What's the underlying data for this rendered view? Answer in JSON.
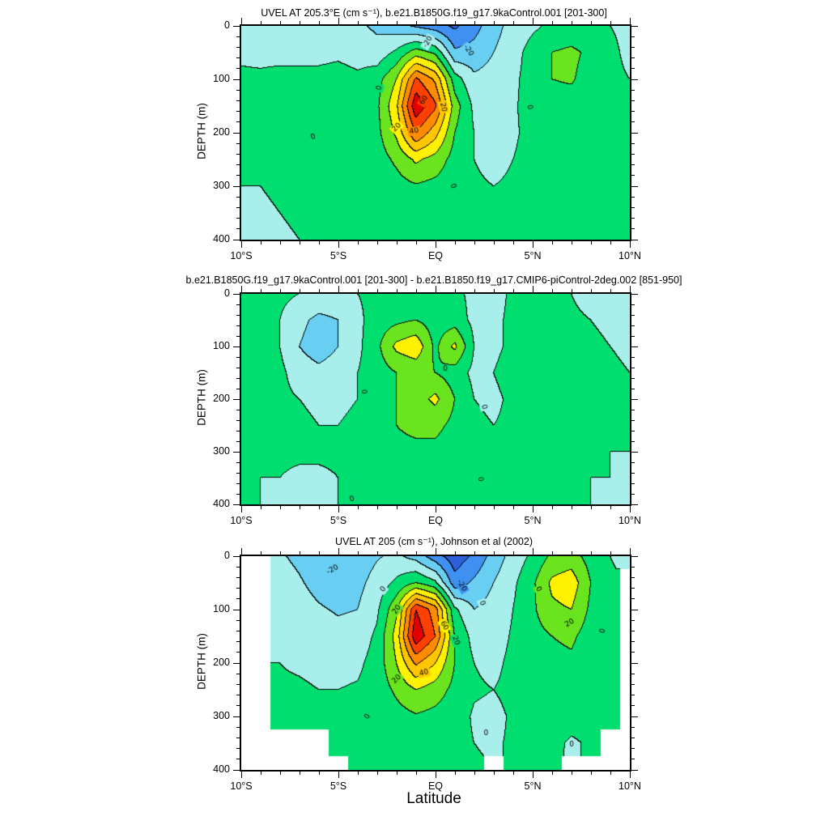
{
  "figure": {
    "xlabel": "Latitude",
    "background": "#ffffff",
    "contour_line_color": "#000000"
  },
  "palette": {
    "fill_colors": [
      "#2e5ed8",
      "#3f90f0",
      "#68cef2",
      "#a8efec",
      "#00de70",
      "#6ae41e",
      "#fff200",
      "#ffc600",
      "#ff8c00",
      "#ff4000",
      "#e40000"
    ],
    "mask_color": "#ffffff"
  },
  "chart_data": [
    {
      "type": "contour",
      "title": "UVEL AT 205.3°E (cm s⁻¹), b.e21.B1850G.f19_g17.9kaControl.001 [201-300]",
      "ylabel": "DEPTH (m)",
      "xlim": [
        -10,
        10
      ],
      "ylim": [
        0,
        400
      ],
      "x_ticks": [
        {
          "v": -10,
          "label": "10°S"
        },
        {
          "v": -5,
          "label": "5°S"
        },
        {
          "v": 0,
          "label": "EQ"
        },
        {
          "v": 5,
          "label": "5°N"
        },
        {
          "v": 10,
          "label": "10°N"
        }
      ],
      "x_minor_step": 1,
      "y_ticks": [
        0,
        100,
        200,
        300,
        400
      ],
      "y_minor_step": 20,
      "contour_interval": 10,
      "levels": [
        -30,
        -20,
        -10,
        0,
        10,
        20,
        30,
        40,
        50,
        60
      ],
      "grid": {
        "lats": [
          -10,
          -9,
          -8,
          -7,
          -6,
          -5,
          -4,
          -3,
          -2,
          -1,
          0,
          1,
          2,
          3,
          4,
          5,
          6,
          7,
          8,
          9,
          10
        ],
        "depths": [
          0,
          50,
          100,
          150,
          200,
          250,
          300,
          350,
          400
        ],
        "values": [
          [
            -3,
            -4,
            -5,
            -5,
            -6,
            -6,
            -8,
            -12,
            -16,
            -22,
            -26,
            -32,
            -24,
            -14,
            -6,
            -2,
            2,
            3,
            2,
            0,
            -2
          ],
          [
            -2,
            -3,
            -3,
            -3,
            -3,
            -2,
            -4,
            -6,
            2,
            15,
            8,
            -18,
            -16,
            -10,
            -4,
            4,
            10,
            12,
            8,
            2,
            -2
          ],
          [
            2,
            2,
            3,
            3,
            3,
            4,
            2,
            6,
            20,
            52,
            38,
            5,
            -8,
            -6,
            -2,
            4,
            10,
            11,
            6,
            2,
            0
          ],
          [
            3,
            3,
            4,
            4,
            4,
            5,
            4,
            8,
            28,
            68,
            52,
            15,
            -2,
            -4,
            -1,
            3,
            6,
            6,
            4,
            2,
            1
          ],
          [
            3,
            4,
            4,
            5,
            5,
            5,
            4,
            7,
            22,
            50,
            34,
            10,
            0,
            -3,
            -1,
            2,
            4,
            4,
            3,
            2,
            1
          ],
          [
            2,
            3,
            4,
            4,
            4,
            4,
            3,
            5,
            12,
            22,
            16,
            6,
            0,
            -2,
            0,
            2,
            3,
            3,
            3,
            2,
            1
          ],
          [
            0,
            0,
            1,
            3,
            3,
            3,
            3,
            4,
            6,
            9,
            7,
            4,
            1,
            0,
            1,
            2,
            3,
            3,
            2,
            2,
            1
          ],
          [
            -2,
            -1,
            0,
            1,
            3,
            3,
            3,
            3,
            4,
            5,
            4,
            3,
            2,
            2,
            2,
            2,
            2,
            2,
            1,
            1,
            1
          ],
          [
            -3,
            -2,
            -1,
            0,
            0,
            1,
            2,
            2,
            3,
            4,
            3,
            3,
            2,
            2,
            2,
            2,
            2,
            2,
            1,
            1,
            1
          ]
        ]
      },
      "contour_labels": [
        {
          "x": -0.4,
          "y": 30,
          "t": "-20",
          "r": -60
        },
        {
          "x": 1.7,
          "y": 46,
          "t": "-20",
          "r": 55
        },
        {
          "x": -2.9,
          "y": 116,
          "t": "0",
          "r": -75
        },
        {
          "x": -0.6,
          "y": 139,
          "t": "60",
          "r": -60
        },
        {
          "x": 0.4,
          "y": 152,
          "t": "20",
          "r": 78
        },
        {
          "x": -1.1,
          "y": 197,
          "t": "40",
          "r": -10
        },
        {
          "x": -2.0,
          "y": 190,
          "t": "20",
          "r": -45
        },
        {
          "x": 4.85,
          "y": 152,
          "t": "0",
          "r": 80
        },
        {
          "x": -6.3,
          "y": 208,
          "t": "0",
          "r": -25
        },
        {
          "x": 0.9,
          "y": 300,
          "t": "0",
          "r": 70
        }
      ]
    },
    {
      "type": "contour",
      "title": "b.e21.B1850G.f19_g17.9kaControl.001 [201-300] - b.e21.B1850.f19_g17.CMIP6-piControl-2deg.002 [851-950]",
      "ylabel": "DEPTH (m)",
      "xlim": [
        -10,
        10
      ],
      "ylim": [
        0,
        400
      ],
      "x_ticks": [
        {
          "v": -10,
          "label": "10°S"
        },
        {
          "v": -5,
          "label": "5°S"
        },
        {
          "v": 0,
          "label": "EQ"
        },
        {
          "v": 5,
          "label": "5°N"
        },
        {
          "v": 10,
          "label": "10°N"
        }
      ],
      "x_minor_step": 1,
      "y_ticks": [
        0,
        100,
        200,
        300,
        400
      ],
      "y_minor_step": 20,
      "contour_interval": 4,
      "levels": [
        -12,
        -8,
        -4,
        0,
        4,
        8,
        12,
        16,
        20,
        24
      ],
      "grid": {
        "lats": [
          -10,
          -9,
          -8,
          -7,
          -6,
          -5,
          -4,
          -3,
          -2,
          -1,
          0,
          1,
          2,
          3,
          4,
          5,
          6,
          7,
          8,
          9,
          10
        ],
        "depths": [
          0,
          50,
          100,
          150,
          200,
          250,
          300,
          350,
          400
        ],
        "values": [
          [
            1,
            1,
            1,
            0,
            -1,
            -1,
            0,
            1,
            2,
            2,
            1,
            1,
            -1,
            -2,
            1,
            2,
            1,
            0,
            -2,
            -3,
            -3
          ],
          [
            1,
            1,
            0,
            -3,
            -5,
            -4,
            -1,
            2,
            3,
            4,
            2,
            2,
            -1,
            -1,
            1,
            2,
            2,
            1,
            0,
            -1,
            -2
          ],
          [
            1,
            1,
            0,
            -4,
            -6,
            -4,
            -1,
            3,
            9,
            11,
            3,
            9,
            0,
            -1,
            1,
            2,
            2,
            2,
            1,
            0,
            -1
          ],
          [
            1,
            1,
            1,
            -2,
            -3,
            -2,
            0,
            2,
            4,
            5,
            4,
            2,
            -1,
            0,
            2,
            2,
            2,
            2,
            1,
            1,
            0
          ],
          [
            1,
            1,
            1,
            0,
            -1,
            -1,
            0,
            2,
            4,
            6,
            9,
            4,
            0,
            -1,
            1,
            2,
            2,
            2,
            1,
            1,
            0
          ],
          [
            1,
            1,
            1,
            1,
            0,
            0,
            1,
            2,
            4,
            5,
            5,
            3,
            1,
            0,
            1,
            2,
            2,
            1,
            1,
            1,
            0
          ],
          [
            1,
            1,
            1,
            1,
            1,
            1,
            1,
            2,
            3,
            3,
            3,
            2,
            1,
            0,
            1,
            1,
            1,
            1,
            1,
            0,
            0
          ],
          [
            1,
            0,
            0,
            -1,
            -1,
            0,
            1,
            2,
            2,
            2,
            2,
            1,
            1,
            1,
            1,
            1,
            1,
            1,
            0,
            0,
            0
          ],
          [
            0,
            0,
            -1,
            -1,
            -1,
            0,
            1,
            1,
            2,
            2,
            2,
            1,
            1,
            1,
            0,
            1,
            1,
            1,
            0,
            0,
            0
          ]
        ]
      },
      "contour_labels": [
        {
          "x": -3.7,
          "y": 186,
          "t": "0",
          "r": 80
        },
        {
          "x": 0.5,
          "y": 143,
          "t": "0",
          "r": 0
        },
        {
          "x": 2.5,
          "y": 215,
          "t": "0",
          "r": 75
        },
        {
          "x": 2.3,
          "y": 352,
          "t": "0",
          "r": 80
        },
        {
          "x": -4.3,
          "y": 390,
          "t": "0",
          "r": -20
        }
      ]
    },
    {
      "type": "contour",
      "title": "UVEL AT 205 (cm s⁻¹), Johnson et al (2002)",
      "ylabel": "DEPTH (m)",
      "xlim": [
        -10,
        10
      ],
      "ylim": [
        0,
        400
      ],
      "x_ticks": [
        {
          "v": -10,
          "label": "10°S"
        },
        {
          "v": -5,
          "label": "5°S"
        },
        {
          "v": 0,
          "label": "EQ"
        },
        {
          "v": 5,
          "label": "5°N"
        },
        {
          "v": 10,
          "label": "10°N"
        }
      ],
      "x_minor_step": 1,
      "y_ticks": [
        0,
        100,
        200,
        300,
        400
      ],
      "y_minor_step": 20,
      "contour_interval": 10,
      "levels": [
        -30,
        -20,
        -10,
        0,
        10,
        20,
        30,
        40,
        50,
        60
      ],
      "grid": {
        "lats": [
          -10,
          -9,
          -8,
          -7,
          -6,
          -5,
          -4,
          -3,
          -2,
          -1,
          0,
          1,
          2,
          3,
          4,
          5,
          6,
          7,
          8,
          9,
          10
        ],
        "depths": [
          0,
          50,
          100,
          150,
          200,
          250,
          300,
          350,
          400
        ],
        "values": [
          [
            null,
            null,
            -9,
            -12,
            -16,
            -19,
            -16,
            -11,
            -8,
            -14,
            -26,
            -36,
            -28,
            -16,
            -6,
            2,
            12,
            14,
            6,
            0,
            -4
          ],
          [
            null,
            null,
            -6,
            -9,
            -13,
            -15,
            -13,
            -6,
            2,
            10,
            2,
            -26,
            -18,
            -10,
            -2,
            8,
            22,
            26,
            10,
            2,
            null
          ],
          [
            null,
            null,
            -4,
            -6,
            -9,
            -11,
            -10,
            -2,
            18,
            60,
            45,
            2,
            -10,
            -6,
            0,
            8,
            18,
            20,
            8,
            2,
            null
          ],
          [
            null,
            null,
            -2,
            -3,
            -5,
            -7,
            -6,
            2,
            24,
            68,
            50,
            10,
            -4,
            -4,
            1,
            6,
            10,
            12,
            5,
            2,
            null
          ],
          [
            null,
            null,
            0,
            -1,
            -2,
            -3,
            -2,
            4,
            20,
            42,
            30,
            10,
            0,
            -2,
            2,
            5,
            7,
            8,
            4,
            2,
            null
          ],
          [
            null,
            null,
            1,
            1,
            0,
            0,
            1,
            4,
            12,
            20,
            15,
            7,
            1,
            0,
            2,
            4,
            5,
            5,
            3,
            2,
            null
          ],
          [
            null,
            null,
            1,
            1,
            1,
            1,
            2,
            3,
            6,
            9,
            7,
            4,
            -1,
            -2,
            1,
            3,
            4,
            3,
            2,
            1,
            null
          ],
          [
            null,
            null,
            null,
            null,
            null,
            1,
            2,
            3,
            4,
            6,
            5,
            3,
            0,
            -1,
            1,
            2,
            2,
            -1,
            1,
            null,
            null
          ],
          [
            null,
            null,
            null,
            null,
            null,
            null,
            2,
            2,
            3,
            4,
            4,
            2,
            1,
            null,
            1,
            2,
            1,
            null,
            null,
            null,
            null
          ]
        ]
      },
      "contour_labels": [
        {
          "x": -5.3,
          "y": 25,
          "t": "-20",
          "r": -30
        },
        {
          "x": -2.7,
          "y": 62,
          "t": "0",
          "r": -50
        },
        {
          "x": 1.35,
          "y": 55,
          "t": "-20",
          "r": 60
        },
        {
          "x": -2.0,
          "y": 100,
          "t": "20",
          "r": -55
        },
        {
          "x": 0.45,
          "y": 130,
          "t": "60",
          "r": 60
        },
        {
          "x": 1.05,
          "y": 158,
          "t": "20",
          "r": 70
        },
        {
          "x": -0.6,
          "y": 218,
          "t": "40",
          "r": -15
        },
        {
          "x": -2.0,
          "y": 230,
          "t": "20",
          "r": -45
        },
        {
          "x": 2.4,
          "y": 88,
          "t": "0",
          "r": 70
        },
        {
          "x": 6.9,
          "y": 125,
          "t": "20",
          "r": -30
        },
        {
          "x": 5.3,
          "y": 62,
          "t": "0",
          "r": 60
        },
        {
          "x": 8.6,
          "y": 140,
          "t": "0",
          "r": -75
        },
        {
          "x": -3.5,
          "y": 300,
          "t": "0",
          "r": -60
        },
        {
          "x": 2.6,
          "y": 332,
          "t": "0",
          "r": 0
        },
        {
          "x": 7.0,
          "y": 352,
          "t": "0",
          "r": 0
        }
      ]
    }
  ]
}
